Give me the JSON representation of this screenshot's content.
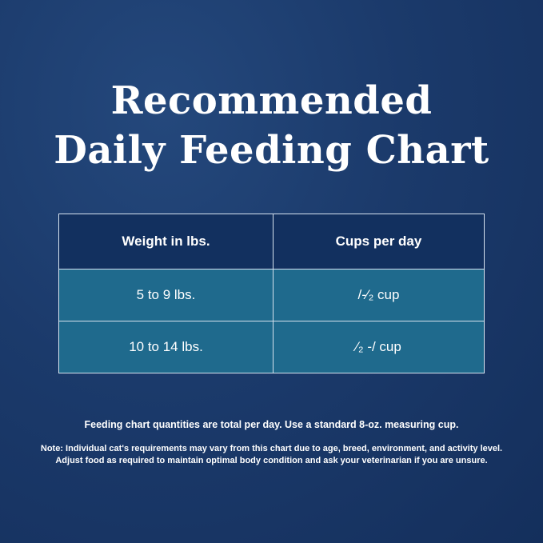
{
  "title": {
    "line1": "Recommended",
    "line2": "Daily Feeding Chart"
  },
  "table": {
    "headers": [
      "Weight in lbs.",
      "Cups per day"
    ],
    "rows": [
      [
        "5 to 9 lbs.",
        "/-⁄₂ cup"
      ],
      [
        "10 to 14 lbs.",
        "⁄₂ -/ cup"
      ]
    ]
  },
  "notes": {
    "main": "Feeding chart quantities are total per day. Use a standard 8-oz. measuring cup.",
    "line1": "Note: Individual cat's requirements may vary from this chart due to age, breed, environment, and activity level.",
    "line2": "Adjust food as required to maintain optimal body condition and ask your veterinarian if you are unsure."
  },
  "colors": {
    "background": "#1b3a6b",
    "header": "#12305f",
    "row": "#1f6a8d"
  }
}
